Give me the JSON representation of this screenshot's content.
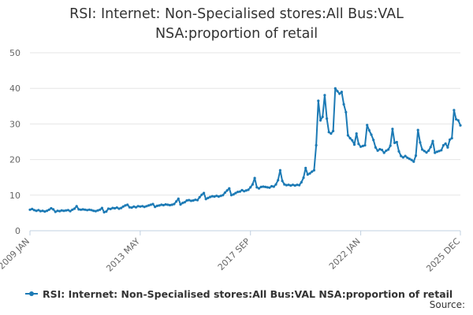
{
  "chart_data": {
    "type": "line",
    "title": "RSI: Internet: Non-Specialised stores:All Bus:VAL\nNSA:proportion of retail",
    "xlabel": "",
    "ylabel": "",
    "ylim": [
      0,
      50
    ],
    "yticks": [
      0,
      10,
      20,
      30,
      40,
      50
    ],
    "xlim": [
      "2009-01",
      "2025-12"
    ],
    "xticks": [
      {
        "label": "2009 JAN",
        "x": "2009-01"
      },
      {
        "label": "2013 MAY",
        "x": "2013-05"
      },
      {
        "label": "2017 SEP",
        "x": "2017-09"
      },
      {
        "label": "2022 JAN",
        "x": "2022-01"
      },
      {
        "label": "2025 DEC",
        "x": "2025-12"
      }
    ],
    "grid": "horizontal",
    "legend_position": "bottom",
    "series": [
      {
        "name": "RSI: Internet: Non-Specialised stores:All Bus:VAL NSA:proportion of retail",
        "color": "#1c7ab5",
        "points": [
          [
            "2009-01",
            5.9
          ],
          [
            "2009-02",
            6.1
          ],
          [
            "2009-03",
            5.8
          ],
          [
            "2009-04",
            5.6
          ],
          [
            "2009-05",
            5.8
          ],
          [
            "2009-06",
            5.5
          ],
          [
            "2009-07",
            5.6
          ],
          [
            "2009-08",
            5.4
          ],
          [
            "2009-09",
            5.6
          ],
          [
            "2009-10",
            5.9
          ],
          [
            "2009-11",
            6.3
          ],
          [
            "2009-12",
            6.0
          ],
          [
            "2010-01",
            5.3
          ],
          [
            "2010-02",
            5.6
          ],
          [
            "2010-03",
            5.5
          ],
          [
            "2010-04",
            5.7
          ],
          [
            "2010-05",
            5.6
          ],
          [
            "2010-06",
            5.7
          ],
          [
            "2010-07",
            5.8
          ],
          [
            "2010-08",
            5.5
          ],
          [
            "2010-09",
            5.9
          ],
          [
            "2010-10",
            6.2
          ],
          [
            "2010-11",
            6.9
          ],
          [
            "2010-12",
            6.0
          ],
          [
            "2011-01",
            5.9
          ],
          [
            "2011-02",
            6.0
          ],
          [
            "2011-03",
            5.9
          ],
          [
            "2011-04",
            5.8
          ],
          [
            "2011-05",
            5.9
          ],
          [
            "2011-06",
            5.8
          ],
          [
            "2011-07",
            5.6
          ],
          [
            "2011-08",
            5.5
          ],
          [
            "2011-09",
            5.7
          ],
          [
            "2011-10",
            5.9
          ],
          [
            "2011-11",
            6.4
          ],
          [
            "2011-12",
            5.2
          ],
          [
            "2012-01",
            5.4
          ],
          [
            "2012-02",
            6.2
          ],
          [
            "2012-03",
            6.1
          ],
          [
            "2012-04",
            6.4
          ],
          [
            "2012-05",
            6.3
          ],
          [
            "2012-06",
            6.5
          ],
          [
            "2012-07",
            6.2
          ],
          [
            "2012-08",
            6.4
          ],
          [
            "2012-09",
            6.8
          ],
          [
            "2012-10",
            7.1
          ],
          [
            "2012-11",
            7.3
          ],
          [
            "2012-12",
            6.6
          ],
          [
            "2013-01",
            6.5
          ],
          [
            "2013-02",
            6.8
          ],
          [
            "2013-03",
            6.6
          ],
          [
            "2013-04",
            6.9
          ],
          [
            "2013-05",
            6.8
          ],
          [
            "2013-06",
            6.9
          ],
          [
            "2013-07",
            6.7
          ],
          [
            "2013-08",
            6.9
          ],
          [
            "2013-09",
            7.1
          ],
          [
            "2013-10",
            7.3
          ],
          [
            "2013-11",
            7.5
          ],
          [
            "2013-12",
            6.7
          ],
          [
            "2014-01",
            7.0
          ],
          [
            "2014-02",
            7.1
          ],
          [
            "2014-03",
            7.3
          ],
          [
            "2014-04",
            7.2
          ],
          [
            "2014-05",
            7.4
          ],
          [
            "2014-06",
            7.3
          ],
          [
            "2014-07",
            7.2
          ],
          [
            "2014-08",
            7.3
          ],
          [
            "2014-09",
            7.5
          ],
          [
            "2014-10",
            8.2
          ],
          [
            "2014-11",
            9.0
          ],
          [
            "2014-12",
            7.4
          ],
          [
            "2015-01",
            7.8
          ],
          [
            "2015-02",
            8.0
          ],
          [
            "2015-03",
            8.5
          ],
          [
            "2015-04",
            8.6
          ],
          [
            "2015-05",
            8.4
          ],
          [
            "2015-06",
            8.5
          ],
          [
            "2015-07",
            8.7
          ],
          [
            "2015-08",
            8.6
          ],
          [
            "2015-09",
            9.4
          ],
          [
            "2015-10",
            10.1
          ],
          [
            "2015-11",
            10.6
          ],
          [
            "2015-12",
            8.9
          ],
          [
            "2016-01",
            9.2
          ],
          [
            "2016-02",
            9.5
          ],
          [
            "2016-03",
            9.7
          ],
          [
            "2016-04",
            9.6
          ],
          [
            "2016-05",
            9.8
          ],
          [
            "2016-06",
            9.6
          ],
          [
            "2016-07",
            9.8
          ],
          [
            "2016-08",
            10.0
          ],
          [
            "2016-09",
            10.7
          ],
          [
            "2016-10",
            11.3
          ],
          [
            "2016-11",
            11.9
          ],
          [
            "2016-12",
            10.0
          ],
          [
            "2017-01",
            10.2
          ],
          [
            "2017-02",
            10.6
          ],
          [
            "2017-03",
            10.9
          ],
          [
            "2017-04",
            11.0
          ],
          [
            "2017-05",
            11.4
          ],
          [
            "2017-06",
            11.1
          ],
          [
            "2017-07",
            11.3
          ],
          [
            "2017-08",
            11.5
          ],
          [
            "2017-09",
            12.2
          ],
          [
            "2017-10",
            13.0
          ],
          [
            "2017-11",
            14.8
          ],
          [
            "2017-12",
            12.2
          ],
          [
            "2018-01",
            11.9
          ],
          [
            "2018-02",
            12.3
          ],
          [
            "2018-03",
            12.4
          ],
          [
            "2018-04",
            12.3
          ],
          [
            "2018-05",
            12.2
          ],
          [
            "2018-06",
            12.1
          ],
          [
            "2018-07",
            12.5
          ],
          [
            "2018-08",
            12.4
          ],
          [
            "2018-09",
            13.0
          ],
          [
            "2018-10",
            14.2
          ],
          [
            "2018-11",
            17.0
          ],
          [
            "2018-12",
            14.0
          ],
          [
            "2019-01",
            13.0
          ],
          [
            "2019-02",
            12.8
          ],
          [
            "2019-03",
            12.9
          ],
          [
            "2019-04",
            12.7
          ],
          [
            "2019-05",
            12.9
          ],
          [
            "2019-06",
            12.7
          ],
          [
            "2019-07",
            12.9
          ],
          [
            "2019-08",
            12.8
          ],
          [
            "2019-09",
            13.6
          ],
          [
            "2019-10",
            14.9
          ],
          [
            "2019-11",
            17.6
          ],
          [
            "2019-12",
            15.8
          ],
          [
            "2020-01",
            16.1
          ],
          [
            "2020-02",
            16.6
          ],
          [
            "2020-03",
            17.0
          ],
          [
            "2020-04",
            24.0
          ],
          [
            "2020-05",
            36.5
          ],
          [
            "2020-06",
            31.0
          ],
          [
            "2020-07",
            32.0
          ],
          [
            "2020-08",
            38.1
          ],
          [
            "2020-09",
            31.5
          ],
          [
            "2020-10",
            27.7
          ],
          [
            "2020-11",
            27.3
          ],
          [
            "2020-12",
            28.0
          ],
          [
            "2021-01",
            40.0
          ],
          [
            "2021-02",
            39.2
          ],
          [
            "2021-03",
            38.5
          ],
          [
            "2021-04",
            39.0
          ],
          [
            "2021-05",
            35.5
          ],
          [
            "2021-06",
            33.3
          ],
          [
            "2021-07",
            26.8
          ],
          [
            "2021-08",
            26.0
          ],
          [
            "2021-09",
            25.4
          ],
          [
            "2021-10",
            24.2
          ],
          [
            "2021-11",
            27.3
          ],
          [
            "2021-12",
            24.4
          ],
          [
            "2022-01",
            23.6
          ],
          [
            "2022-02",
            23.8
          ],
          [
            "2022-03",
            24.0
          ],
          [
            "2022-04",
            29.7
          ],
          [
            "2022-05",
            28.2
          ],
          [
            "2022-06",
            27.0
          ],
          [
            "2022-07",
            25.5
          ],
          [
            "2022-08",
            23.4
          ],
          [
            "2022-09",
            22.5
          ],
          [
            "2022-10",
            22.9
          ],
          [
            "2022-11",
            22.7
          ],
          [
            "2022-12",
            21.9
          ],
          [
            "2023-01",
            22.5
          ],
          [
            "2023-02",
            22.8
          ],
          [
            "2023-03",
            23.9
          ],
          [
            "2023-04",
            28.6
          ],
          [
            "2023-05",
            24.7
          ],
          [
            "2023-06",
            24.9
          ],
          [
            "2023-07",
            22.3
          ],
          [
            "2023-08",
            21.0
          ],
          [
            "2023-09",
            20.6
          ],
          [
            "2023-10",
            21.0
          ],
          [
            "2023-11",
            20.5
          ],
          [
            "2023-12",
            20.2
          ],
          [
            "2024-01",
            19.9
          ],
          [
            "2024-02",
            19.4
          ],
          [
            "2024-03",
            21.1
          ],
          [
            "2024-04",
            28.3
          ],
          [
            "2024-05",
            24.8
          ],
          [
            "2024-06",
            22.8
          ],
          [
            "2024-07",
            22.4
          ],
          [
            "2024-08",
            22.0
          ],
          [
            "2024-09",
            22.5
          ],
          [
            "2024-10",
            23.5
          ],
          [
            "2024-11",
            25.2
          ],
          [
            "2024-12",
            21.9
          ],
          [
            "2025-01",
            22.2
          ],
          [
            "2025-02",
            22.4
          ],
          [
            "2025-03",
            22.6
          ],
          [
            "2025-04",
            24.0
          ],
          [
            "2025-05",
            24.5
          ],
          [
            "2025-06",
            23.4
          ],
          [
            "2025-07",
            25.6
          ],
          [
            "2025-08",
            26.0
          ],
          [
            "2025-09",
            33.9
          ],
          [
            "2025-10",
            31.3
          ],
          [
            "2025-11",
            31.0
          ],
          [
            "2025-12",
            29.6
          ]
        ]
      }
    ]
  },
  "legend": {
    "label": "RSI: Internet: Non-Specialised stores:All Bus:VAL NSA:proportion of retail"
  },
  "credit": {
    "text": "Source:"
  }
}
